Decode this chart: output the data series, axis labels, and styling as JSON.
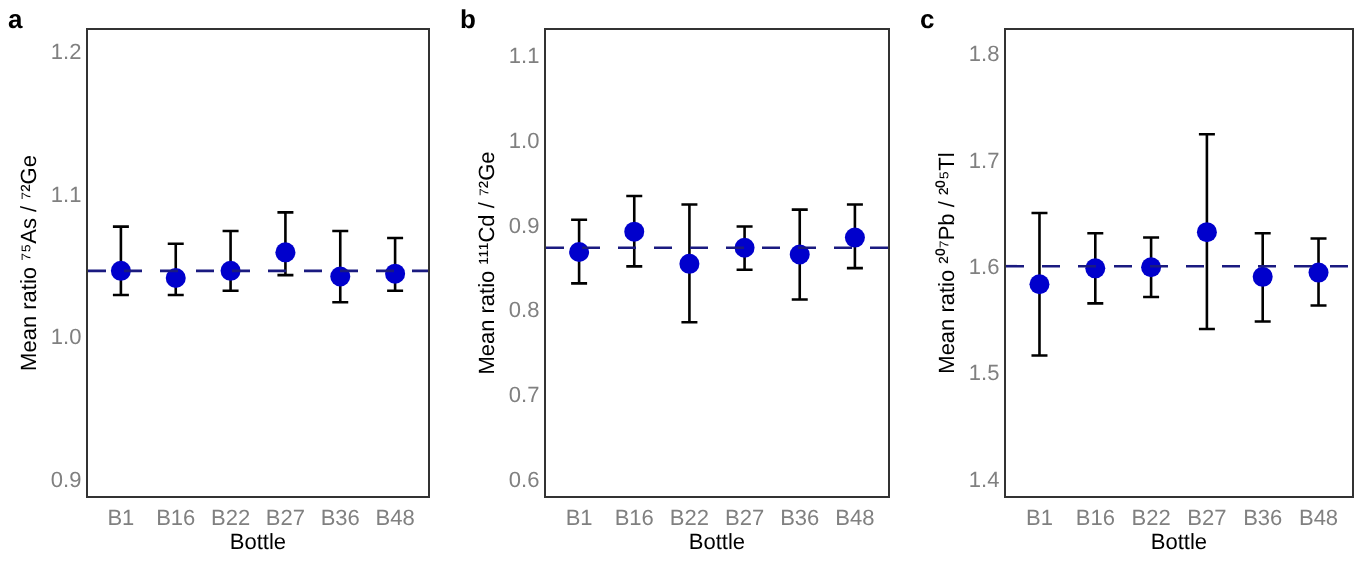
{
  "chart_data": [
    {
      "type": "scatter",
      "title": "a",
      "xlabel": "Bottle",
      "ylabel": "Mean ratio ⁷⁵As / ⁷²Ge",
      "categories": [
        "B1",
        "B16",
        "B22",
        "B27",
        "B36",
        "B48"
      ],
      "series": [
        {
          "color": "#0000cc",
          "values": [
            1.046,
            1.041,
            1.046,
            1.059,
            1.042,
            1.044
          ],
          "errors": [
            [
              1.029,
              1.077
            ],
            [
              1.029,
              1.065
            ],
            [
              1.032,
              1.074
            ],
            [
              1.043,
              1.087
            ],
            [
              1.024,
              1.074
            ],
            [
              1.032,
              1.069
            ]
          ]
        }
      ],
      "ylim": [
        0.888,
        1.215
      ],
      "yticks": [
        0.9,
        {
          "value": 1.0,
          "label": "1.0"
        },
        1.1,
        1.2
      ],
      "marker": "circle",
      "ref_lines": [
        {
          "axis": "y",
          "value": 1.046,
          "color": "#1a1a80",
          "line_style": "dashed"
        }
      ]
    },
    {
      "type": "scatter",
      "title": "b",
      "xlabel": "Bottle",
      "ylabel": "Mean ratio ¹¹¹Cd / ⁷²Ge",
      "categories": [
        "B1",
        "B16",
        "B22",
        "B27",
        "B36",
        "B48"
      ],
      "series": [
        {
          "color": "#0000cc",
          "values": [
            0.868,
            0.892,
            0.854,
            0.873,
            0.865,
            0.885
          ],
          "errors": [
            [
              0.831,
              0.906
            ],
            [
              0.851,
              0.934
            ],
            [
              0.785,
              0.924
            ],
            [
              0.847,
              0.898
            ],
            [
              0.812,
              0.918
            ],
            [
              0.849,
              0.924
            ]
          ]
        }
      ],
      "ylim": [
        0.58,
        1.13
      ],
      "yticks": [
        0.6,
        0.7,
        0.8,
        0.9,
        {
          "value": 1.0,
          "label": "1.0"
        },
        1.1
      ],
      "marker": "circle",
      "ref_lines": [
        {
          "axis": "y",
          "value": 0.873,
          "color": "#1a1a80",
          "line_style": "dashed"
        }
      ]
    },
    {
      "type": "scatter",
      "title": "c",
      "xlabel": "Bottle",
      "ylabel": "Mean ratio ²⁰⁷Pb / ²⁰⁵Tl",
      "categories": [
        "B1",
        "B16",
        "B22",
        "B27",
        "B36",
        "B48"
      ],
      "series": [
        {
          "color": "#0000cc",
          "values": [
            1.583,
            1.598,
            1.599,
            1.632,
            1.59,
            1.594
          ],
          "errors": [
            [
              1.516,
              1.65
            ],
            [
              1.565,
              1.631
            ],
            [
              1.571,
              1.627
            ],
            [
              1.541,
              1.724
            ],
            [
              1.548,
              1.631
            ],
            [
              1.563,
              1.626
            ]
          ]
        }
      ],
      "ylim": [
        1.384,
        1.822
      ],
      "yticks": [
        1.4,
        1.5,
        1.6,
        1.7,
        1.8
      ],
      "marker": "circle",
      "ref_lines": [
        {
          "axis": "y",
          "value": 1.6,
          "color": "#1a1a80",
          "line_style": "dashed"
        }
      ]
    }
  ]
}
